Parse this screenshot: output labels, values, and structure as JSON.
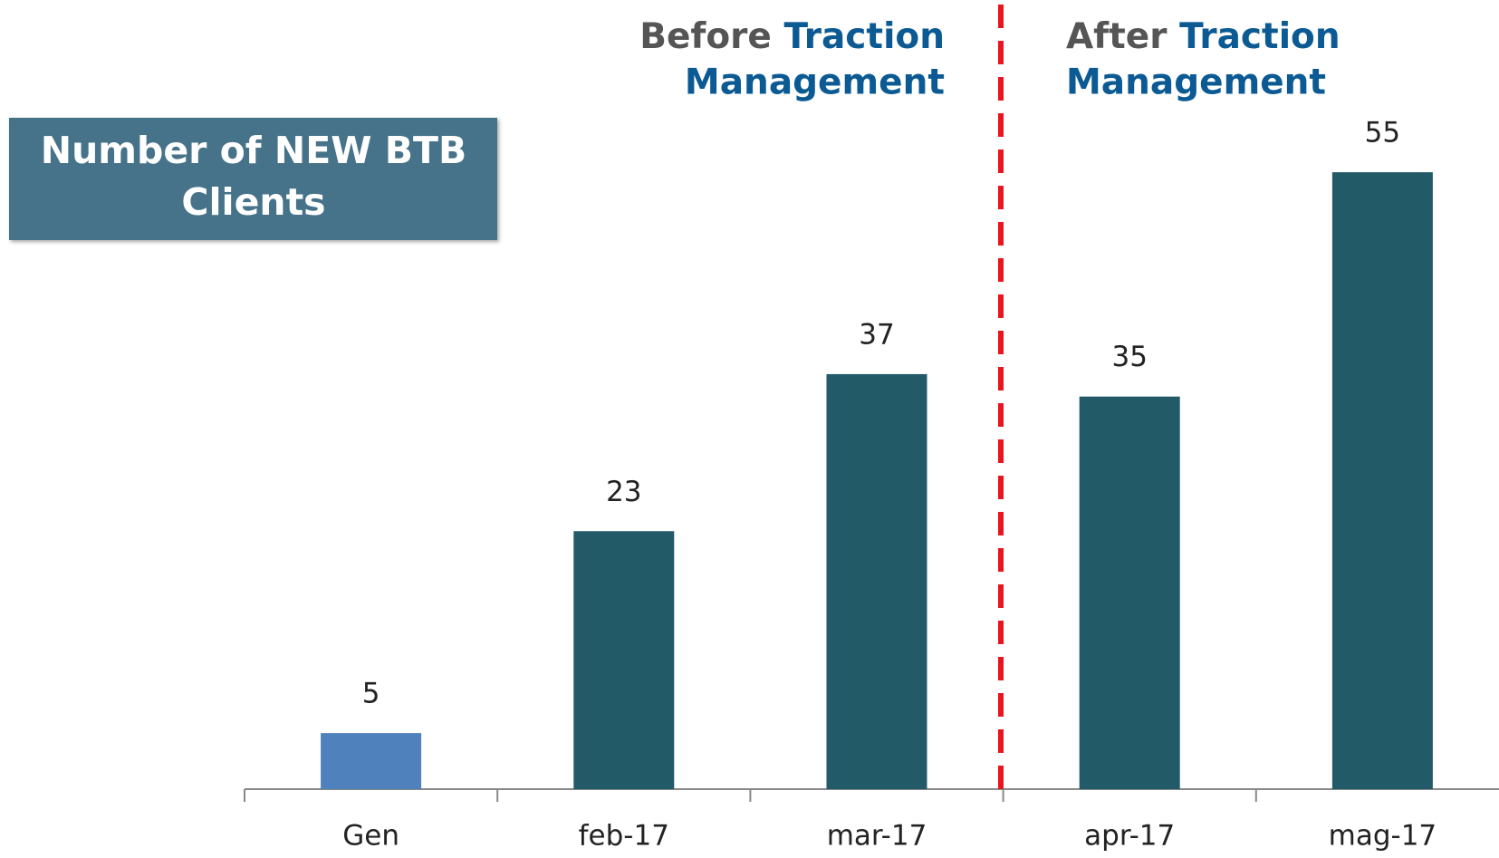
{
  "chart_data": {
    "type": "bar",
    "title": [
      "Number of NEW BTB",
      "Clients"
    ],
    "categories": [
      "Gen",
      "feb-17",
      "mar-17",
      "apr-17",
      "mag-17"
    ],
    "values": [
      5,
      23,
      37,
      35,
      55
    ],
    "colors": [
      "#4f81bd",
      "#225a68",
      "#225a68",
      "#225a68",
      "#225a68"
    ],
    "annotations": [
      {
        "text": [
          "Before",
          "Traction",
          "Management"
        ]
      },
      {
        "text": [
          "After",
          "Traction",
          "Management"
        ]
      }
    ],
    "divider_color": "#e8141e"
  }
}
